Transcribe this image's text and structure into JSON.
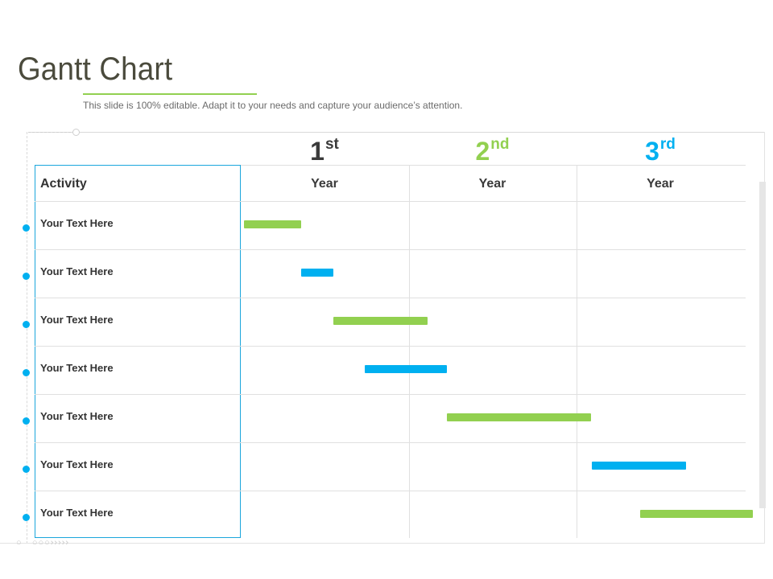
{
  "header": {
    "title": "Gantt Chart",
    "subtitle": "This slide is 100% editable. Adapt it to your needs and capture your audience’s attention."
  },
  "colors": {
    "green": "#92d050",
    "blue": "#00b0f0",
    "title": "#4a4a3c",
    "grid": "#e0e0e0",
    "frame_accent": "#1ba6dc",
    "ordinal_dark": "#3a3a3a"
  },
  "table": {
    "activity_header": "Activity",
    "columns": [
      {
        "num": "1",
        "suffix": "st",
        "label": "Year",
        "color": "#3a3a3a"
      },
      {
        "num": "2",
        "suffix": "nd",
        "label": "Year",
        "color": "#92d050"
      },
      {
        "num": "3",
        "suffix": "rd",
        "label": "Year",
        "color": "#00b0f0"
      }
    ],
    "rows": [
      {
        "label": "Your Text Here"
      },
      {
        "label": "Your Text Here"
      },
      {
        "label": "Your Text Here"
      },
      {
        "label": "Your Text Here"
      },
      {
        "label": "Your Text Here"
      },
      {
        "label": "Your Text Here"
      },
      {
        "label": "Your Text Here"
      }
    ]
  },
  "chart_data": {
    "type": "bar",
    "title": "Gantt Chart",
    "categories": [
      "1st Year",
      "2nd Year",
      "3rd Year"
    ],
    "xlim": [
      0,
      3
    ],
    "unit": "years",
    "tasks": [
      {
        "row": 0,
        "start": 0.02,
        "end": 0.36,
        "color": "#92d050"
      },
      {
        "row": 1,
        "start": 0.36,
        "end": 0.55,
        "color": "#00b0f0"
      },
      {
        "row": 2,
        "start": 0.55,
        "end": 1.11,
        "color": "#92d050"
      },
      {
        "row": 3,
        "start": 0.74,
        "end": 1.23,
        "color": "#00b0f0"
      },
      {
        "row": 4,
        "start": 1.23,
        "end": 2.09,
        "color": "#92d050"
      },
      {
        "row": 5,
        "start": 2.09,
        "end": 2.65,
        "color": "#00b0f0"
      },
      {
        "row": 6,
        "start": 2.38,
        "end": 3.05,
        "color": "#92d050"
      }
    ]
  }
}
